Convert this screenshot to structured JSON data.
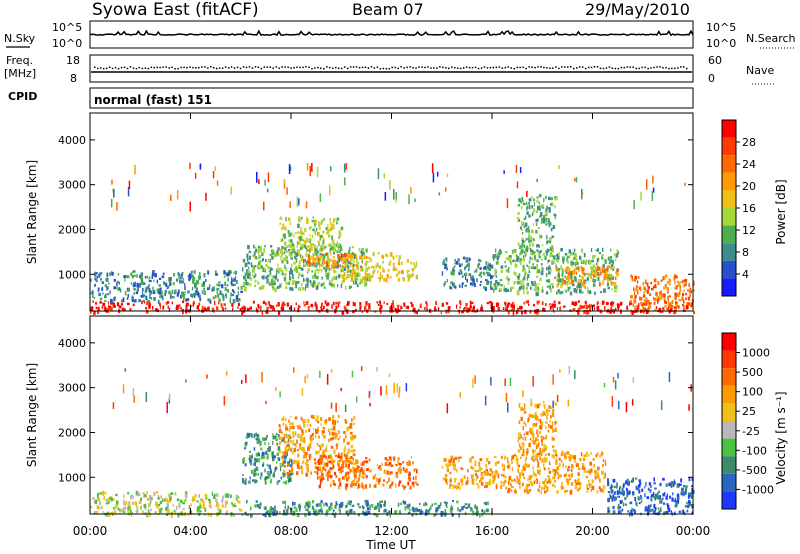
{
  "header": {
    "station": "Syowa East (fitACF)",
    "beam": "Beam 07",
    "date": "29/May/2010"
  },
  "strips": {
    "nsky_label": "N.Sky",
    "nsky_ticks": [
      "10^5",
      "10^0"
    ],
    "nsearch_label": "N.Search",
    "nsearch_ticks": [
      "10^5",
      "10^0"
    ],
    "freq_label_1": "Freq.",
    "freq_label_2": "[MHz]",
    "freq_ticks": [
      "18",
      "8"
    ],
    "nave_label": "Nave",
    "nave_ticks": [
      "60",
      "0"
    ],
    "cpid_label": "CPID",
    "cpid_value": "normal (fast) 151"
  },
  "chart_data": [
    {
      "type": "heatmap",
      "name": "power-panel",
      "ylabel": "Slant Range [km]",
      "xlabel": "Time UT",
      "x_ticks": [
        "00:00",
        "04:00",
        "08:00",
        "12:00",
        "16:00",
        "20:00",
        "00:00"
      ],
      "x_range_hours": [
        0,
        24
      ],
      "y_ticks": [
        1000,
        2000,
        3000,
        4000
      ],
      "y_range_km": [
        180,
        4600
      ],
      "colorbar": {
        "label": "Power [dB]",
        "ticks": [
          "4",
          "8",
          "12",
          "16",
          "20",
          "24",
          "28"
        ],
        "colors": [
          "#1a1aff",
          "#2850c8",
          "#3c8c8c",
          "#4caf50",
          "#a8d838",
          "#f0c018",
          "#ff9a00",
          "#ff6a00",
          "#ff3a00",
          "#ff0000"
        ]
      },
      "regions": [
        {
          "t0": 0,
          "t1": 24,
          "r0": 180,
          "r1": 420,
          "level": 9
        },
        {
          "t0": 0,
          "t1": 6,
          "r0": 420,
          "r1": 1100,
          "level": 2
        },
        {
          "t0": 6,
          "t1": 11,
          "r0": 700,
          "r1": 1700,
          "level": 3
        },
        {
          "t0": 7.5,
          "t1": 10,
          "r0": 1100,
          "r1": 2300,
          "level": 4
        },
        {
          "t0": 8.5,
          "t1": 10.2,
          "r0": 1200,
          "r1": 1500,
          "level": 7
        },
        {
          "t0": 10,
          "t1": 13,
          "r0": 900,
          "r1": 1500,
          "level": 5
        },
        {
          "t0": 14,
          "t1": 16,
          "r0": 700,
          "r1": 1400,
          "level": 2
        },
        {
          "t0": 16,
          "t1": 21,
          "r0": 600,
          "r1": 1600,
          "level": 3
        },
        {
          "t0": 17,
          "t1": 18.5,
          "r0": 1500,
          "r1": 2800,
          "level": 3
        },
        {
          "t0": 18.5,
          "t1": 21,
          "r0": 800,
          "r1": 1200,
          "level": 6
        },
        {
          "t0": 21.5,
          "t1": 24,
          "r0": 200,
          "r1": 1000,
          "level": 7
        }
      ]
    },
    {
      "type": "heatmap",
      "name": "velocity-panel",
      "ylabel": "Slant Range [km]",
      "xlabel": "Time UT",
      "x_ticks": [
        "00:00",
        "04:00",
        "08:00",
        "12:00",
        "16:00",
        "20:00",
        "00:00"
      ],
      "x_range_hours": [
        0,
        24
      ],
      "y_ticks": [
        1000,
        2000,
        3000,
        4000
      ],
      "y_range_km": [
        180,
        4600
      ],
      "colorbar": {
        "label": "Velocity [m s⁻¹]",
        "ticks": [
          "1000",
          "500",
          "100",
          "25",
          "-25",
          "-100",
          "-500",
          "-1000"
        ],
        "colors": [
          "#1a3aff",
          "#2a66c0",
          "#3c8c6a",
          "#4cc040",
          "#b8b8b8",
          "#f0c018",
          "#ff9a00",
          "#ff6a00",
          "#ff3a00",
          "#ff0000"
        ]
      },
      "regions": [
        {
          "t0": 0,
          "t1": 6,
          "r0": 180,
          "r1": 700,
          "level": 4
        },
        {
          "t0": 6,
          "t1": 8,
          "r0": 900,
          "r1": 2000,
          "level": 2
        },
        {
          "t0": 7.5,
          "t1": 10.5,
          "r0": 1100,
          "r1": 2400,
          "level": 6
        },
        {
          "t0": 9,
          "t1": 13,
          "r0": 800,
          "r1": 1500,
          "level": 7
        },
        {
          "t0": 6,
          "t1": 16,
          "r0": 180,
          "r1": 500,
          "level": 2
        },
        {
          "t0": 14,
          "t1": 16.5,
          "r0": 800,
          "r1": 1500,
          "level": 6
        },
        {
          "t0": 16.5,
          "t1": 20.5,
          "r0": 700,
          "r1": 1600,
          "level": 6
        },
        {
          "t0": 17,
          "t1": 18.5,
          "r0": 1500,
          "r1": 2700,
          "level": 6
        },
        {
          "t0": 20.5,
          "t1": 24,
          "r0": 200,
          "r1": 1000,
          "level": 1
        }
      ]
    }
  ]
}
